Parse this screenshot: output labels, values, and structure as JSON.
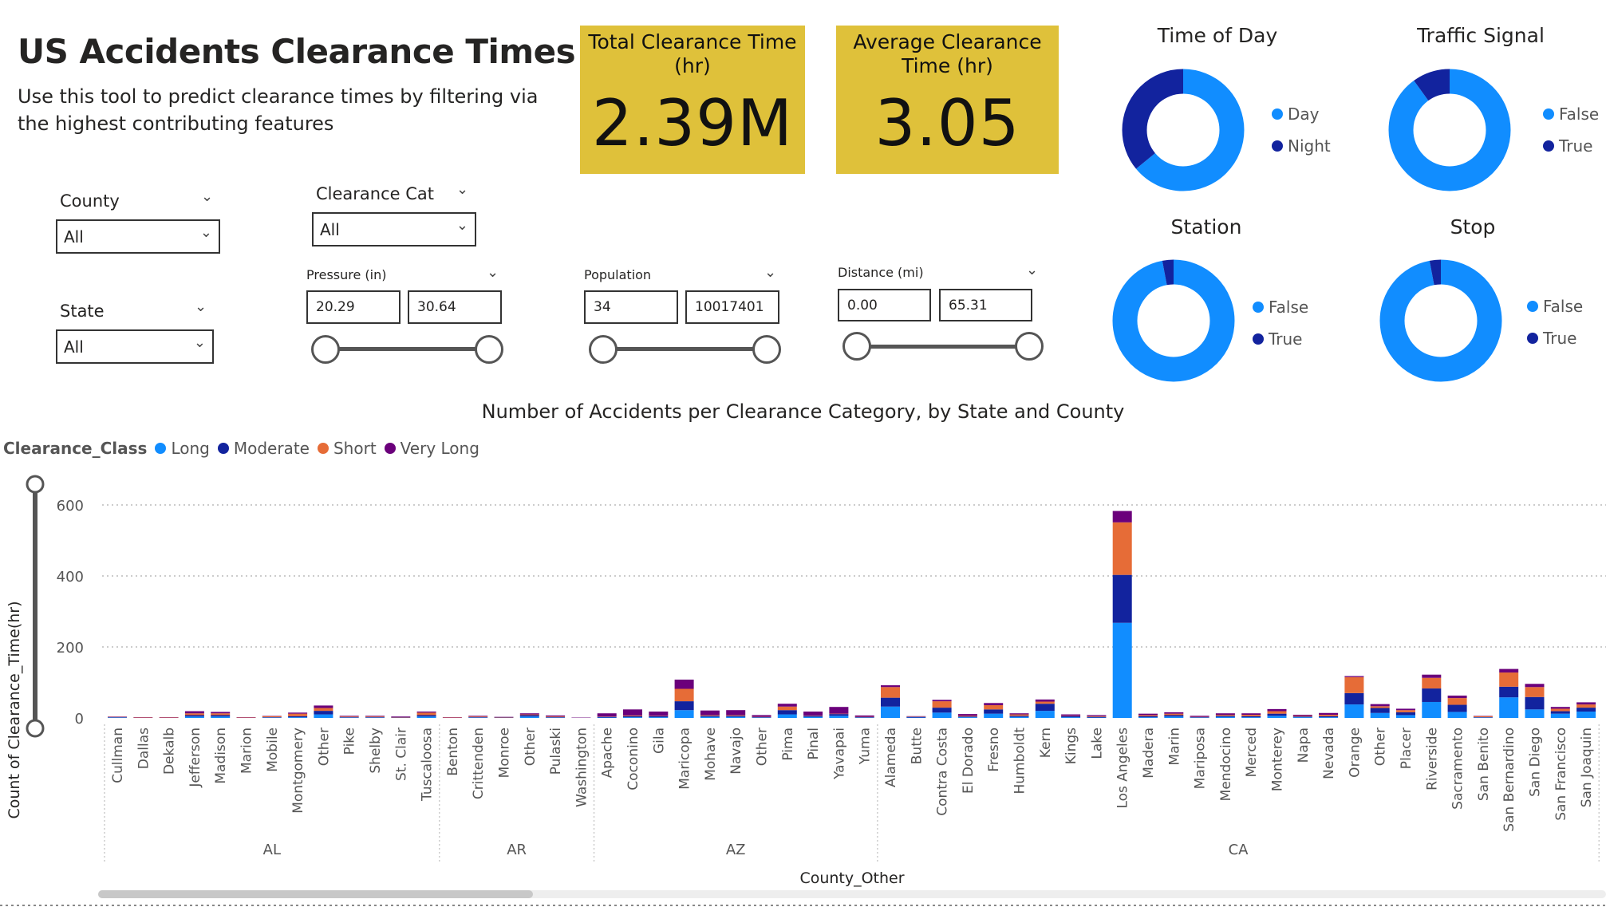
{
  "header": {
    "title": "US Accidents Clearance Times",
    "subtitle": "Use this tool to predict clearance times by filtering via the highest contributing features"
  },
  "kpis": [
    {
      "label": "Total Clearance Time (hr)",
      "value": "2.39M"
    },
    {
      "label": "Average Clearance Time (hr)",
      "value": "3.05"
    }
  ],
  "colors": {
    "long": "#118dff",
    "moderate": "#12239e",
    "short": "#e66c37",
    "very_long": "#6b007b",
    "kpi_bg": "#dfc13a"
  },
  "slicers": {
    "county": {
      "label": "County",
      "value": "All"
    },
    "state": {
      "label": "State",
      "value": "All"
    },
    "clearance_cat": {
      "label": "Clearance Cat",
      "value": "All"
    },
    "pressure": {
      "label": "Pressure (in)",
      "min": "20.29",
      "max": "30.64"
    },
    "population": {
      "label": "Population",
      "min": "34",
      "max": "10017401"
    },
    "distance": {
      "label": "Distance (mi)",
      "min": "0.00",
      "max": "65.31"
    }
  },
  "donuts": [
    {
      "title": "Time of Day",
      "legend": [
        "Day",
        "Night"
      ],
      "shares": [
        0.64,
        0.36
      ]
    },
    {
      "title": "Traffic Signal",
      "legend": [
        "False",
        "True"
      ],
      "shares": [
        0.9,
        0.1
      ]
    },
    {
      "title": "Station",
      "legend": [
        "False",
        "True"
      ],
      "shares": [
        0.97,
        0.03
      ]
    },
    {
      "title": "Stop",
      "legend": [
        "False",
        "True"
      ],
      "shares": [
        0.97,
        0.03
      ]
    }
  ],
  "chart_data": {
    "type": "bar",
    "stacked": true,
    "title": "Number of Accidents per Clearance Category, by State and County",
    "legend_title": "Clearance_Class",
    "legend_placement": "top-left",
    "xlabel": "County_Other",
    "ylabel": "Count of Clearance_Time(hr)",
    "ylim": [
      0,
      650
    ],
    "yticks": [
      0,
      200,
      400,
      600
    ],
    "grid": true,
    "groups": [
      {
        "name": "AL",
        "start": 0,
        "end": 12
      },
      {
        "name": "AR",
        "start": 13,
        "end": 18
      },
      {
        "name": "AZ",
        "start": 19,
        "end": 29
      },
      {
        "name": "CA",
        "start": 30,
        "end": 57
      }
    ],
    "categories": [
      "Cullman",
      "Dallas",
      "Dekalb",
      "Jefferson",
      "Madison",
      "Marion",
      "Mobile",
      "Montgomery",
      "Other",
      "Pike",
      "Shelby",
      "St. Clair",
      "Tuscaloosa",
      "Benton",
      "Crittenden",
      "Monroe",
      "Other",
      "Pulaski",
      "Washington",
      "Apache",
      "Coconino",
      "Gila",
      "Maricopa",
      "Mohave",
      "Navajo",
      "Other",
      "Pima",
      "Pinal",
      "Yavapai",
      "Yuma",
      "Alameda",
      "Butte",
      "Contra Costa",
      "El Dorado",
      "Fresno",
      "Humboldt",
      "Kern",
      "Kings",
      "Lake",
      "Los Angeles",
      "Madera",
      "Marin",
      "Mariposa",
      "Mendocino",
      "Merced",
      "Monterey",
      "Napa",
      "Nevada",
      "Orange",
      "Other",
      "Placer",
      "Riverside",
      "Sacramento",
      "San Benito",
      "San Bernardino",
      "San Diego",
      "San Francisco",
      "San Joaquin"
    ],
    "series": [
      {
        "name": "Long",
        "values": [
          1,
          0,
          0,
          4,
          4,
          0,
          1,
          2,
          10,
          1,
          1,
          0,
          4,
          0,
          1,
          0,
          4,
          1,
          0,
          1,
          2,
          2,
          22,
          3,
          3,
          1,
          10,
          3,
          6,
          1,
          32,
          1,
          15,
          2,
          12,
          3,
          20,
          2,
          1,
          268,
          2,
          4,
          1,
          3,
          2,
          6,
          2,
          2,
          38,
          14,
          8,
          45,
          17,
          1,
          58,
          24,
          12,
          18
        ]
      },
      {
        "name": "Moderate",
        "values": [
          1,
          0,
          0,
          4,
          4,
          0,
          1,
          3,
          10,
          1,
          1,
          1,
          4,
          0,
          1,
          1,
          4,
          1,
          0,
          2,
          3,
          3,
          25,
          3,
          3,
          1,
          12,
          3,
          5,
          1,
          25,
          2,
          14,
          2,
          12,
          3,
          20,
          3,
          2,
          135,
          3,
          4,
          1,
          3,
          3,
          6,
          2,
          3,
          32,
          14,
          8,
          38,
          20,
          1,
          30,
          35,
          7,
          11
        ]
      },
      {
        "name": "Short",
        "values": [
          1,
          1,
          1,
          5,
          5,
          1,
          3,
          7,
          8,
          2,
          2,
          1,
          7,
          1,
          2,
          1,
          2,
          2,
          0,
          1,
          2,
          1,
          35,
          2,
          2,
          1,
          10,
          1,
          1,
          1,
          30,
          1,
          18,
          2,
          12,
          4,
          6,
          1,
          2,
          148,
          3,
          4,
          1,
          3,
          4,
          7,
          2,
          4,
          45,
          5,
          6,
          30,
          19,
          3,
          40,
          28,
          7,
          9
        ]
      },
      {
        "name": "Very Long",
        "values": [
          1,
          1,
          1,
          6,
          4,
          1,
          1,
          3,
          7,
          2,
          2,
          2,
          3,
          1,
          2,
          1,
          3,
          3,
          1,
          9,
          17,
          12,
          26,
          13,
          14,
          5,
          8,
          11,
          19,
          4,
          5,
          1,
          4,
          5,
          6,
          3,
          6,
          4,
          3,
          32,
          4,
          4,
          3,
          4,
          4,
          6,
          3,
          5,
          3,
          6,
          4,
          9,
          7,
          1,
          10,
          9,
          5,
          6
        ]
      }
    ]
  },
  "chart_text": {
    "title": "Number of Accidents per Clearance Category, by State and County"
  }
}
